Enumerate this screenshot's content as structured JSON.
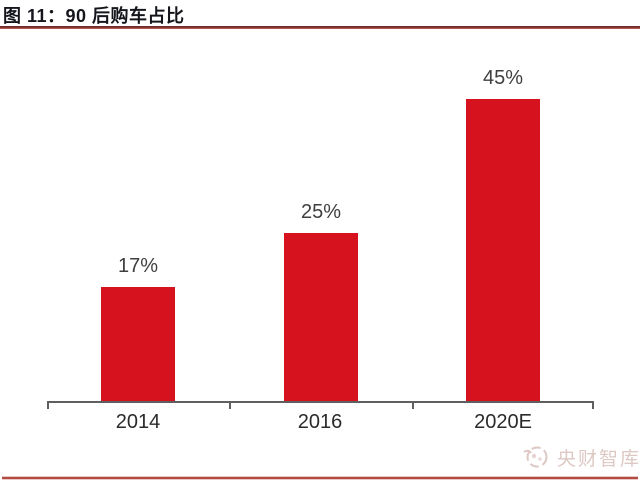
{
  "header": {
    "title": "图 11：90 后购车占比"
  },
  "chart_data": {
    "type": "bar",
    "title": "图 11：90 后购车占比",
    "categories": [
      "2014",
      "2016",
      "2020E"
    ],
    "values": [
      17,
      25,
      45
    ],
    "data_labels": [
      "17%",
      "25%",
      "45%"
    ],
    "xlabel": "",
    "ylabel": "",
    "ylim": [
      0,
      50
    ],
    "grid": false,
    "legend": null,
    "bar_color": "#d7121f",
    "axis_color": "#5f5f5f",
    "label_color": "#3f3f3f"
  },
  "watermark": {
    "text": "央财智库",
    "logo": "yangcai-swirl-logo",
    "color": "#ddc8c4"
  },
  "colors": {
    "title_rule": "#8c3a34",
    "bottom_rule": "#b34a44",
    "bar": "#d7121f",
    "title_text": "#15161c"
  }
}
